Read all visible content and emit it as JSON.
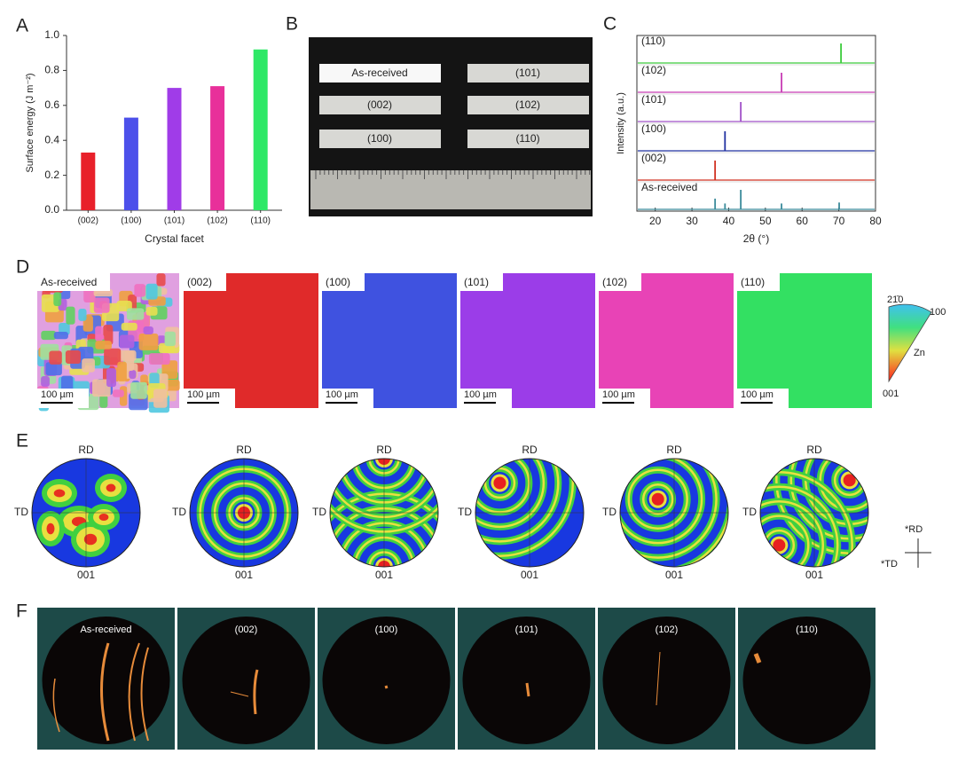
{
  "figure": {
    "panel_labels": [
      "A",
      "B",
      "C",
      "D",
      "E",
      "F"
    ],
    "photo": {
      "strips": [
        "As-received",
        "(101)",
        "(002)",
        "(102)",
        "(100)",
        "(110)"
      ]
    },
    "ebsd": {
      "maps": [
        {
          "label": "As-received",
          "scale": "100 µm"
        },
        {
          "label": "(002)",
          "scale": "100 µm",
          "color": "#e02a2a"
        },
        {
          "label": "(100)",
          "scale": "100 µm",
          "color": "#3f52e0"
        },
        {
          "label": "(101)",
          "scale": "100 µm",
          "color": "#9b3de8"
        },
        {
          "label": "(102)",
          "scale": "100 µm",
          "color": "#e843b6"
        },
        {
          "label": "(110)",
          "scale": "100 µm",
          "color": "#33e062"
        }
      ],
      "legend": {
        "top": "21̄0",
        "right": "100",
        "inner": "Zn",
        "bottom": "001"
      }
    },
    "pole_figures": {
      "items": [
        {
          "top": "RD",
          "left": "TD",
          "bottom": "001"
        },
        {
          "top": "RD",
          "left": "TD",
          "bottom": "001"
        },
        {
          "top": "RD",
          "left": "TD",
          "bottom": "001"
        },
        {
          "top": "RD",
          "left": "TD",
          "bottom": "001"
        },
        {
          "top": "RD",
          "left": "TD",
          "bottom": "001"
        },
        {
          "top": "RD",
          "left": "TD",
          "bottom": "001"
        }
      ],
      "axes": {
        "up": "*RD",
        "left": "*TD"
      }
    },
    "laue": {
      "labels": [
        "As-received",
        "(002)",
        "(100)",
        "(101)",
        "(102)",
        "(110)"
      ]
    }
  },
  "chart_data": [
    {
      "type": "bar",
      "y_label": "Surface energy (J m⁻²)",
      "x_label": "Crystal facet",
      "categories": [
        "(002)",
        "(100)",
        "(101)",
        "(102)",
        "(110)"
      ],
      "values": [
        0.33,
        0.53,
        0.7,
        0.71,
        0.92
      ],
      "colors": [
        "#e8202a",
        "#4c50ea",
        "#a03ce8",
        "#e8309a",
        "#2ee866"
      ],
      "ylim": [
        0,
        1.0
      ],
      "yticks": [
        {
          "value": 0,
          "label": "0.0"
        },
        0.2,
        0.4,
        0.6,
        0.8,
        {
          "value": 1.0,
          "label": "1.0"
        }
      ]
    },
    {
      "type": "line",
      "y_label": "Intensity (a.u.)",
      "x_label": "2θ (°)",
      "xlim": [
        15,
        80
      ],
      "xticks": [
        20,
        30,
        40,
        50,
        60,
        70,
        80
      ],
      "series": [
        {
          "name": "(110)",
          "color": "#3ccc3c",
          "x": [
            70.6
          ],
          "values": [
            1.0
          ]
        },
        {
          "name": "(102)",
          "color": "#c83cb4",
          "x": [
            54.4
          ],
          "values": [
            1.0
          ]
        },
        {
          "name": "(101)",
          "color": "#a050c8",
          "x": [
            43.3
          ],
          "values": [
            1.0
          ]
        },
        {
          "name": "(100)",
          "color": "#2030a0",
          "x": [
            39.0
          ],
          "values": [
            1.0
          ]
        },
        {
          "name": "(002)",
          "color": "#d03020",
          "x": [
            36.3
          ],
          "values": [
            1.0
          ]
        },
        {
          "name": "As-received",
          "color": "#3a8a9a",
          "x": [
            36.3,
            39.0,
            43.3,
            54.4,
            70.1
          ],
          "values": [
            0.55,
            0.3,
            1.0,
            0.3,
            0.35
          ]
        }
      ]
    }
  ]
}
